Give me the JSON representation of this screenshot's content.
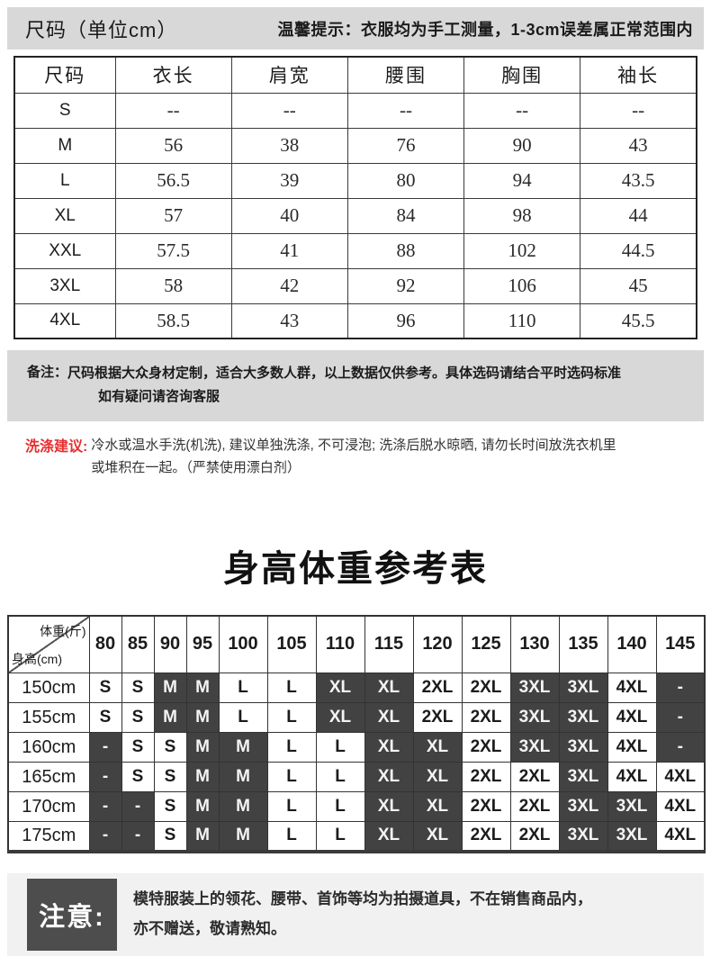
{
  "header": {
    "title": "尺码（单位cm）",
    "tip": "温馨提示：衣服均为手工测量，1-3cm误差属正常范围内"
  },
  "size_table": {
    "columns": [
      "尺码",
      "衣长",
      "肩宽",
      "腰围",
      "胸围",
      "袖长"
    ],
    "rows": [
      [
        "S",
        "--",
        "--",
        "--",
        "--",
        "--"
      ],
      [
        "M",
        "56",
        "38",
        "76",
        "90",
        "43"
      ],
      [
        "L",
        "56.5",
        "39",
        "80",
        "94",
        "43.5"
      ],
      [
        "XL",
        "57",
        "40",
        "84",
        "98",
        "44"
      ],
      [
        "XXL",
        "57.5",
        "41",
        "88",
        "102",
        "44.5"
      ],
      [
        "3XL",
        "58",
        "42",
        "92",
        "106",
        "45"
      ],
      [
        "4XL",
        "58.5",
        "43",
        "96",
        "110",
        "45.5"
      ]
    ]
  },
  "remark": {
    "label": "备注：",
    "line1": "尺码根据大众身材定制，适合大多数人群，以上数据仅供参考。具体选码请结合平时选码标准",
    "line2": "如有疑问请咨询客服"
  },
  "washing": {
    "label": "洗涤建议:",
    "line1": "冷水或温水手洗(机洗), 建议单独洗涤, 不可浸泡; 洗涤后脱水晾晒, 请勿长时间放洗衣机里",
    "line2": "或堆积在一起。（严禁使用漂白剂）"
  },
  "reference": {
    "title": "身高体重参考表",
    "corner_top": "体重(斤)",
    "corner_bottom": "身高(cm)",
    "weights": [
      "80",
      "85",
      "90",
      "95",
      "100",
      "105",
      "110",
      "115",
      "120",
      "125",
      "130",
      "135",
      "140",
      "145"
    ],
    "rows": [
      {
        "height": "150cm",
        "sizes": [
          "S",
          "S",
          "M",
          "M",
          "L",
          "L",
          "XL",
          "XL",
          "2XL",
          "2XL",
          "3XL",
          "3XL",
          "4XL",
          "-"
        ]
      },
      {
        "height": "155cm",
        "sizes": [
          "S",
          "S",
          "M",
          "M",
          "L",
          "L",
          "XL",
          "XL",
          "2XL",
          "2XL",
          "3XL",
          "3XL",
          "4XL",
          "-"
        ]
      },
      {
        "height": "160cm",
        "sizes": [
          "-",
          "S",
          "S",
          "M",
          "M",
          "L",
          "L",
          "XL",
          "XL",
          "2XL",
          "3XL",
          "3XL",
          "4XL",
          "-"
        ]
      },
      {
        "height": "165cm",
        "sizes": [
          "-",
          "S",
          "S",
          "M",
          "M",
          "L",
          "L",
          "XL",
          "XL",
          "2XL",
          "2XL",
          "3XL",
          "4XL",
          "4XL"
        ]
      },
      {
        "height": "170cm",
        "sizes": [
          "-",
          "-",
          "S",
          "M",
          "M",
          "L",
          "L",
          "XL",
          "XL",
          "2XL",
          "2XL",
          "3XL",
          "3XL",
          "4XL"
        ]
      },
      {
        "height": "175cm",
        "sizes": [
          "-",
          "-",
          "S",
          "M",
          "M",
          "L",
          "L",
          "XL",
          "XL",
          "2XL",
          "2XL",
          "3XL",
          "3XL",
          "4XL"
        ]
      }
    ],
    "dark_values": [
      "M",
      "XL",
      "3XL",
      "-"
    ]
  },
  "notice": {
    "label": "注意:",
    "line1": "模特服装上的领花、腰带、首饰等均为拍摄道具，不在销售商品内，",
    "line2": "亦不赠送，敬请熟知。"
  },
  "colors": {
    "bar_bg": "#d8d8d8",
    "remark_bg": "#d8d8d8",
    "washing_label": "#e53030",
    "dark_cell": "#424242",
    "notice_bg": "#f1f1f1",
    "notice_badge_bg": "#4d4d4d",
    "border": "#333333"
  }
}
